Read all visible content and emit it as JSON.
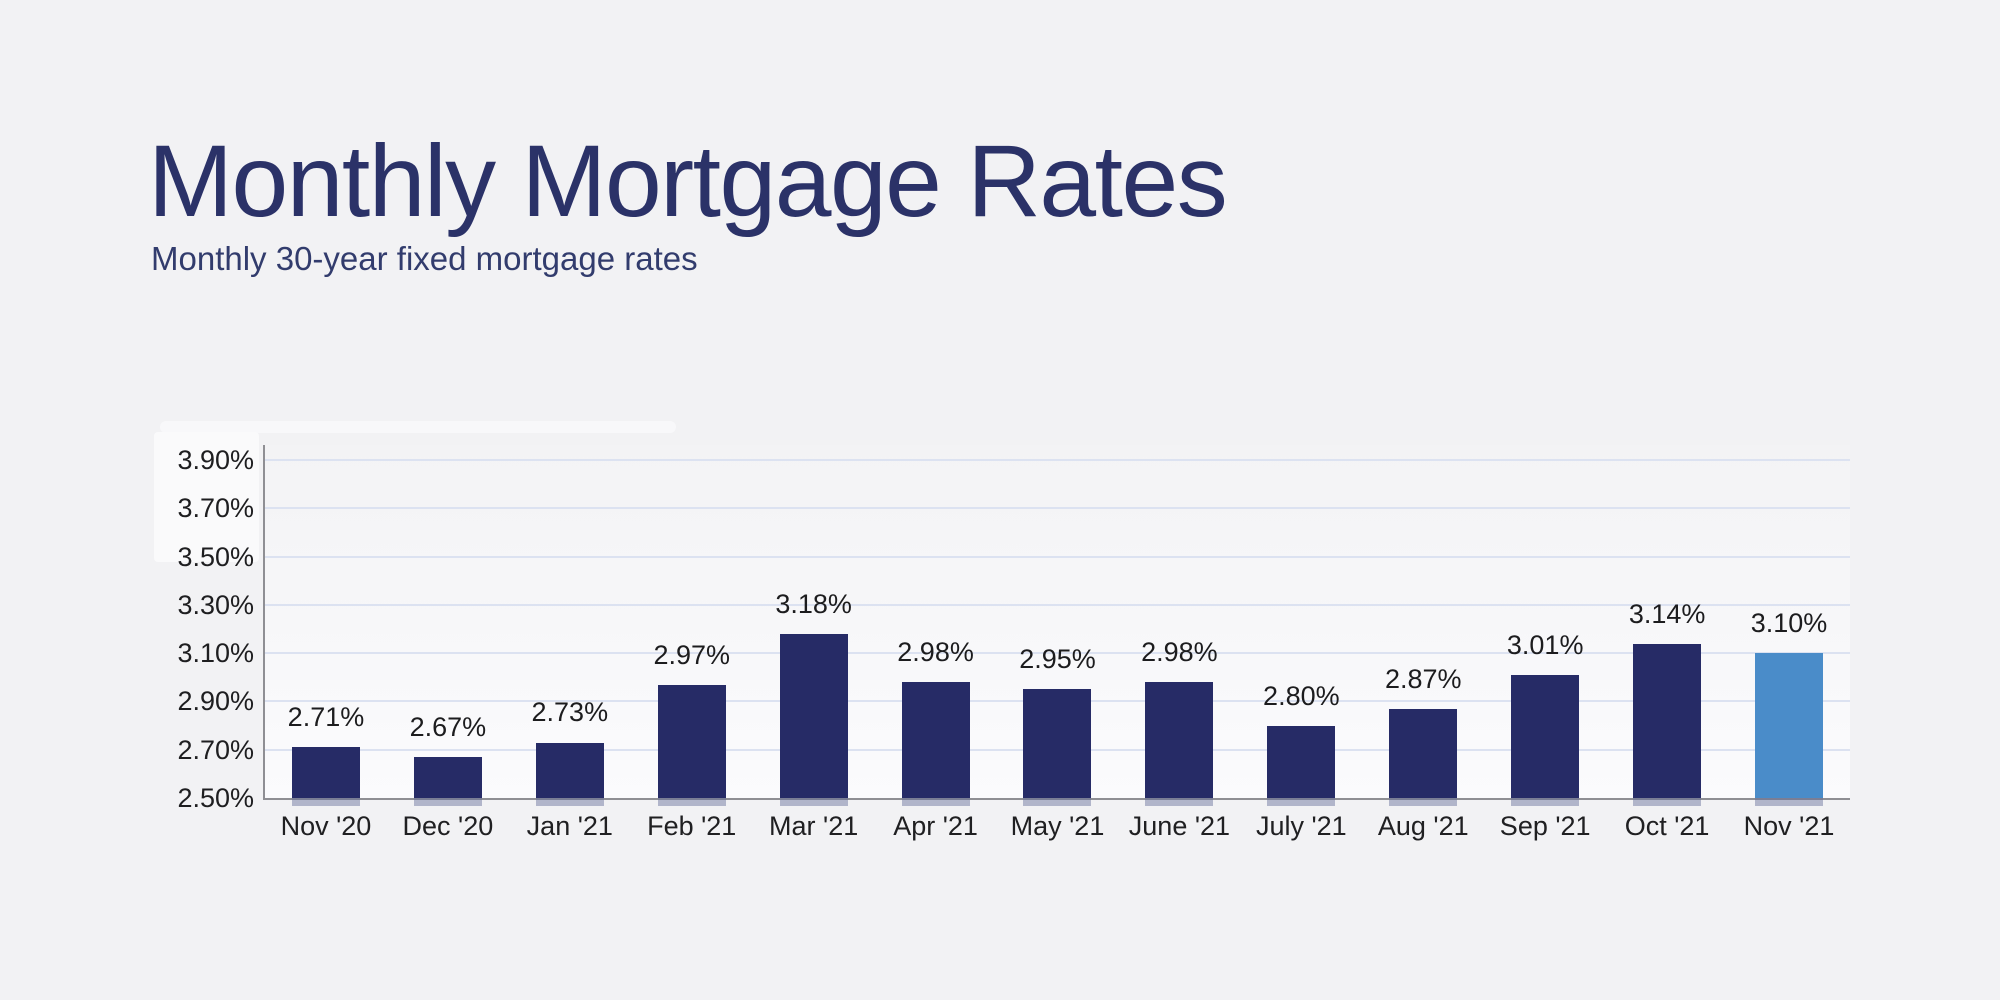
{
  "page": {
    "background_color": "#f2f2f4"
  },
  "header": {
    "title": "Monthly Mortgage Rates",
    "subtitle": "Monthly 30-year fixed mortgage rates",
    "title_color": "#2b3268",
    "subtitle_color": "#323c6d"
  },
  "chart_data": {
    "type": "bar",
    "title": "Monthly Mortgage Rates",
    "subtitle": "Monthly 30-year fixed mortgage rates",
    "categories": [
      "Nov '20",
      "Dec '20",
      "Jan '21",
      "Feb '21",
      "Mar '21",
      "Apr '21",
      "May '21",
      "June '21",
      "July '21",
      "Aug '21",
      "Sep '21",
      "Oct '21",
      "Nov '21"
    ],
    "values": [
      2.71,
      2.67,
      2.73,
      2.97,
      3.18,
      2.98,
      2.95,
      2.98,
      2.8,
      2.87,
      3.01,
      3.14,
      3.1
    ],
    "value_labels": [
      "2.71%",
      "2.67%",
      "2.73%",
      "2.97%",
      "3.18%",
      "2.98%",
      "2.95%",
      "2.98%",
      "2.80%",
      "2.87%",
      "3.01%",
      "3.14%",
      "3.10%"
    ],
    "highlight_index": 12,
    "xlabel": "",
    "ylabel": "",
    "y_axis": {
      "min": 2.5,
      "max": 3.9,
      "step": 0.2,
      "tick_labels": [
        "3.90%",
        "3.70%",
        "3.50%",
        "3.30%",
        "3.10%",
        "2.90%",
        "2.70%",
        "2.50%"
      ]
    },
    "grid": true,
    "legend": false,
    "bar_color": "#262b66",
    "highlight_color": "#4a8cc9",
    "gridline_color": "#dce2f1",
    "axis_color": "#8f8f94"
  }
}
